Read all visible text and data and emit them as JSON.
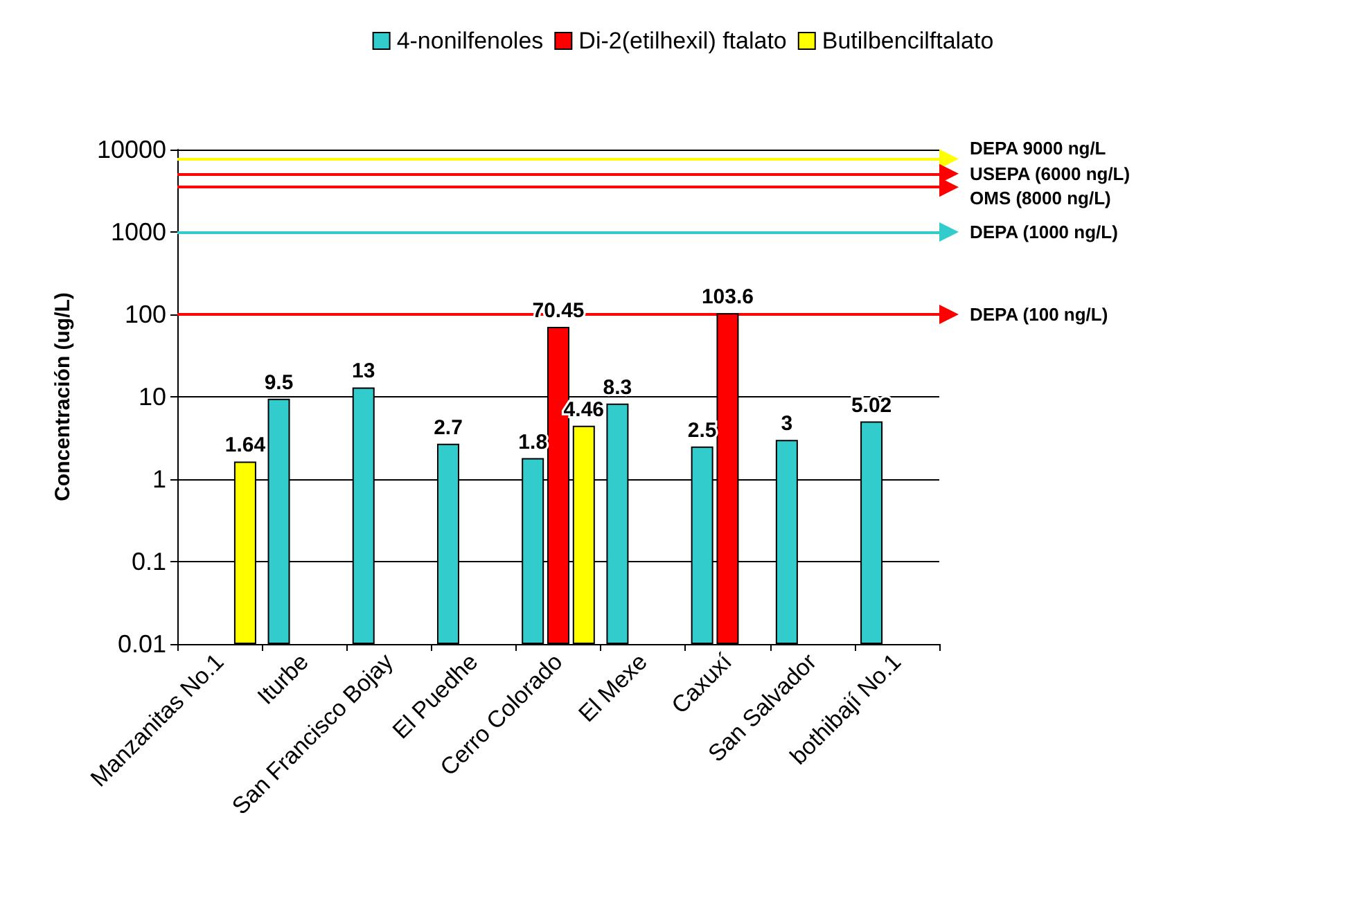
{
  "chart_data": {
    "type": "bar",
    "ylabel": "Concentración (ug/L)",
    "categories": [
      "Manzanitas No.1",
      "Iturbe",
      "San Francisco Bojay",
      "El Puedhe",
      "Cerro Colorado",
      "El Mexe",
      "Caxuxí",
      "San Salvador",
      "bothibají No.1"
    ],
    "series": [
      {
        "name": "4-nonilfenoles",
        "color": "#33cccc",
        "values": [
          null,
          9.5,
          13,
          2.7,
          1.8,
          8.3,
          2.5,
          3,
          5.02
        ]
      },
      {
        "name": "Di-2(etilhexil) ftalato",
        "color": "#ff0000",
        "values": [
          null,
          null,
          null,
          null,
          70.45,
          null,
          103.6,
          null,
          null
        ]
      },
      {
        "name": "Butilbencilftalato",
        "color": "#ffff00",
        "values": [
          1.64,
          null,
          null,
          null,
          4.46,
          null,
          null,
          null,
          null
        ]
      }
    ],
    "log": true,
    "ylim": [
      0.01,
      10000
    ],
    "yticks": [
      0.01,
      0.1,
      1,
      10,
      100,
      1000,
      10000
    ],
    "grid": "y",
    "legend": "top",
    "data_labels": true,
    "ref_lines": [
      {
        "axis": "y",
        "value": 7700,
        "label": "DEPA 9000 ng/L",
        "color": "#ffff00"
      },
      {
        "axis": "y",
        "value": 5100,
        "label": "USEPA (6000 ng/L)",
        "color": "#ff0000"
      },
      {
        "axis": "y",
        "value": 3500,
        "label": "OMS (8000 ng/L)",
        "color": "#ff0000"
      },
      {
        "axis": "y",
        "value": 1000,
        "label": "DEPA (1000 ng/L)",
        "color": "#33cccc"
      },
      {
        "axis": "y",
        "value": 100,
        "label": "DEPA (100 ng/L)",
        "color": "#ff0000"
      }
    ]
  }
}
